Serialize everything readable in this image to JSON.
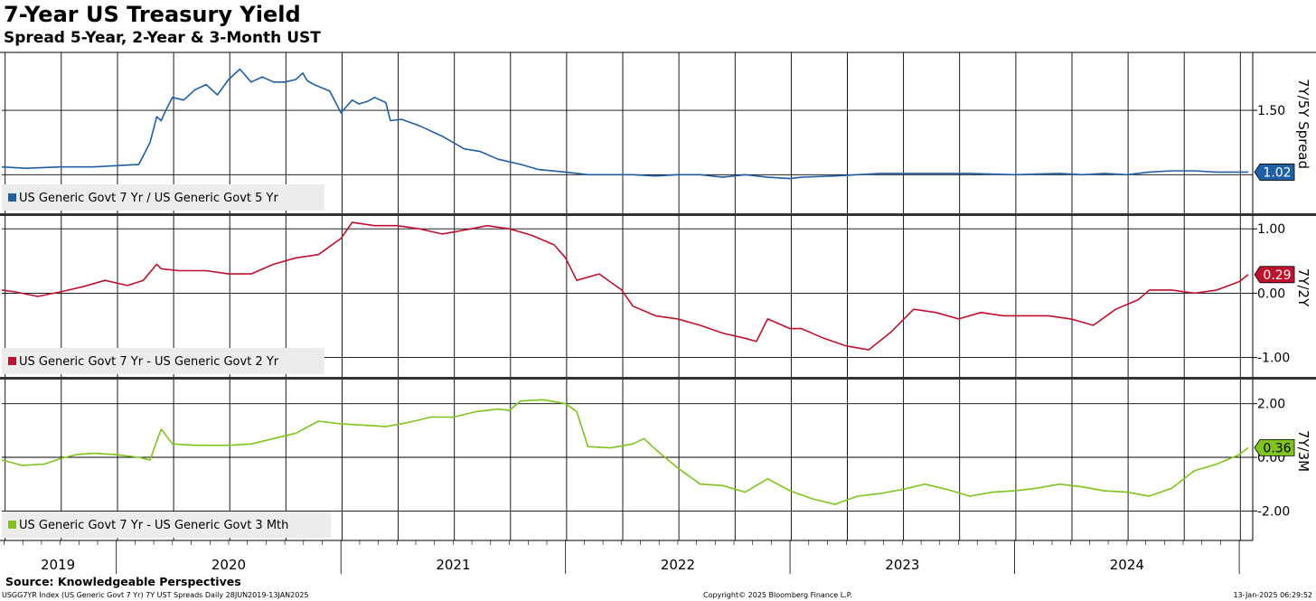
{
  "title": "7-Year US Treasury Yield",
  "subtitle": "Spread 5-Year, 2-Year & 3-Month UST",
  "source": "Source: Knowledgeable Perspectives",
  "footer": {
    "left": "USGG7YR Index (US Generic Govt 7 Yr) 7Y UST Spreads  Daily 28JUN2019-13JAN2025",
    "center": "Copyright© 2025 Bloomberg Finance L.P.",
    "right": "13-Jan-2025 06:29:52"
  },
  "colors": {
    "series1": "#1f5fa6",
    "series2": "#c0102e",
    "series3": "#7fc31c",
    "grid": "#000000",
    "panel_divider": "#333333"
  },
  "chart_data": [
    {
      "type": "line",
      "ylabel": "7Y/5Y Spread",
      "ylim": [
        0.7,
        1.95
      ],
      "yticks": [
        {
          "v": 1.5,
          "label": "1.50"
        }
      ],
      "gridlines": [
        1.0,
        1.5
      ],
      "grid": true,
      "legend_position": "bottom-left",
      "series": [
        {
          "name": "US Generic Govt 7 Yr / US Generic Govt 5 Yr",
          "last_value": 1.02,
          "last_label": "1.02",
          "x": [
            2019.49,
            2019.6,
            2019.75,
            2019.9,
            2020.0,
            2020.1,
            2020.15,
            2020.18,
            2020.2,
            2020.22,
            2020.25,
            2020.3,
            2020.35,
            2020.4,
            2020.45,
            2020.5,
            2020.55,
            2020.6,
            2020.65,
            2020.7,
            2020.75,
            2020.8,
            2020.83,
            2020.85,
            2020.88,
            2020.95,
            2021.0,
            2021.05,
            2021.08,
            2021.12,
            2021.15,
            2021.2,
            2021.22,
            2021.27,
            2021.35,
            2021.45,
            2021.5,
            2021.55,
            2021.62,
            2021.7,
            2021.8,
            2021.88,
            2022.0,
            2022.1,
            2022.2,
            2022.3,
            2022.4,
            2022.5,
            2022.6,
            2022.7,
            2022.8,
            2022.9,
            2023.0,
            2023.05,
            2023.2,
            2023.4,
            2023.6,
            2023.8,
            2024.0,
            2024.2,
            2024.3,
            2024.4,
            2024.5,
            2024.6,
            2024.7,
            2024.8,
            2024.9,
            2025.0,
            2025.04
          ],
          "values": [
            1.06,
            1.05,
            1.06,
            1.06,
            1.07,
            1.08,
            1.25,
            1.45,
            1.42,
            1.5,
            1.6,
            1.58,
            1.66,
            1.7,
            1.62,
            1.74,
            1.82,
            1.72,
            1.76,
            1.72,
            1.72,
            1.74,
            1.79,
            1.73,
            1.7,
            1.65,
            1.48,
            1.58,
            1.55,
            1.57,
            1.6,
            1.56,
            1.42,
            1.43,
            1.38,
            1.3,
            1.25,
            1.2,
            1.18,
            1.12,
            1.08,
            1.04,
            1.02,
            1.0,
            1.0,
            1.0,
            0.99,
            1.0,
            1.0,
            0.98,
            1.0,
            0.98,
            0.97,
            0.98,
            0.99,
            1.01,
            1.01,
            1.01,
            1.0,
            1.01,
            1.0,
            1.01,
            1.0,
            1.02,
            1.03,
            1.03,
            1.02,
            1.02,
            1.02
          ]
        }
      ]
    },
    {
      "type": "line",
      "ylabel": "7Y/2Y",
      "ylim": [
        -1.3,
        1.2
      ],
      "yticks": [
        {
          "v": 1.0,
          "label": "1.00"
        },
        {
          "v": 0.0,
          "label": "0.00"
        },
        {
          "v": -1.0,
          "label": "-1.00"
        }
      ],
      "gridlines": [
        1.0,
        0.0,
        -1.0
      ],
      "grid": true,
      "legend_position": "bottom-left",
      "series": [
        {
          "name": "US Generic Govt 7 Yr - US Generic Govt 2 Yr",
          "last_value": 0.29,
          "last_label": "0.29",
          "x": [
            2019.49,
            2019.55,
            2019.65,
            2019.75,
            2019.85,
            2019.95,
            2020.05,
            2020.12,
            2020.18,
            2020.2,
            2020.28,
            2020.4,
            2020.5,
            2020.6,
            2020.7,
            2020.8,
            2020.9,
            2021.0,
            2021.05,
            2021.15,
            2021.25,
            2021.35,
            2021.45,
            2021.5,
            2021.58,
            2021.65,
            2021.75,
            2021.85,
            2021.95,
            2022.0,
            2022.05,
            2022.15,
            2022.25,
            2022.3,
            2022.4,
            2022.5,
            2022.6,
            2022.7,
            2022.8,
            2022.85,
            2022.9,
            2023.0,
            2023.05,
            2023.15,
            2023.25,
            2023.35,
            2023.45,
            2023.55,
            2023.65,
            2023.75,
            2023.85,
            2023.95,
            2024.05,
            2024.15,
            2024.25,
            2024.35,
            2024.45,
            2024.55,
            2024.6,
            2024.7,
            2024.8,
            2024.9,
            2025.0,
            2025.04
          ],
          "values": [
            0.05,
            0.02,
            -0.05,
            0.02,
            0.1,
            0.2,
            0.12,
            0.2,
            0.45,
            0.38,
            0.35,
            0.35,
            0.3,
            0.3,
            0.45,
            0.55,
            0.6,
            0.85,
            1.1,
            1.05,
            1.05,
            1.0,
            0.92,
            0.95,
            1.0,
            1.05,
            1.0,
            0.9,
            0.75,
            0.55,
            0.2,
            0.3,
            0.05,
            -0.2,
            -0.35,
            -0.4,
            -0.5,
            -0.62,
            -0.7,
            -0.75,
            -0.4,
            -0.55,
            -0.55,
            -0.7,
            -0.82,
            -0.88,
            -0.6,
            -0.25,
            -0.3,
            -0.4,
            -0.3,
            -0.35,
            -0.35,
            -0.35,
            -0.4,
            -0.5,
            -0.25,
            -0.1,
            0.05,
            0.05,
            0.0,
            0.05,
            0.18,
            0.29
          ]
        }
      ]
    },
    {
      "type": "line",
      "ylabel": "7Y/3M",
      "ylim": [
        -3.1,
        2.9
      ],
      "yticks": [
        {
          "v": 2.0,
          "label": "2.00"
        },
        {
          "v": 0.0,
          "label": "0.00"
        },
        {
          "v": -2.0,
          "label": "-2.00"
        }
      ],
      "gridlines": [
        2.0,
        0.0,
        -2.0
      ],
      "grid": true,
      "legend_position": "bottom-left",
      "series": [
        {
          "name": "US Generic Govt 7 Yr - US Generic Govt 3 Mth",
          "last_value": 0.36,
          "last_label": "0.36",
          "x": [
            2019.49,
            2019.58,
            2019.68,
            2019.75,
            2019.82,
            2019.9,
            2020.0,
            2020.1,
            2020.15,
            2020.18,
            2020.2,
            2020.25,
            2020.35,
            2020.5,
            2020.6,
            2020.7,
            2020.8,
            2020.9,
            2021.0,
            2021.1,
            2021.2,
            2021.3,
            2021.4,
            2021.5,
            2021.6,
            2021.7,
            2021.75,
            2021.8,
            2021.9,
            2022.0,
            2022.05,
            2022.1,
            2022.2,
            2022.3,
            2022.35,
            2022.4,
            2022.5,
            2022.6,
            2022.7,
            2022.8,
            2022.9,
            2023.0,
            2023.1,
            2023.2,
            2023.3,
            2023.4,
            2023.5,
            2023.6,
            2023.7,
            2023.8,
            2023.9,
            2024.0,
            2024.1,
            2024.2,
            2024.3,
            2024.4,
            2024.5,
            2024.6,
            2024.7,
            2024.8,
            2024.9,
            2025.0,
            2025.04
          ],
          "values": [
            -0.1,
            -0.3,
            -0.25,
            -0.05,
            0.1,
            0.15,
            0.1,
            0.0,
            -0.1,
            0.6,
            1.05,
            0.5,
            0.45,
            0.45,
            0.5,
            0.7,
            0.9,
            1.35,
            1.25,
            1.2,
            1.15,
            1.3,
            1.5,
            1.5,
            1.7,
            1.8,
            1.75,
            2.1,
            2.15,
            2.0,
            1.7,
            0.4,
            0.35,
            0.5,
            0.7,
            0.3,
            -0.4,
            -1.0,
            -1.05,
            -1.3,
            -0.8,
            -1.25,
            -1.55,
            -1.75,
            -1.45,
            -1.35,
            -1.2,
            -1.0,
            -1.2,
            -1.45,
            -1.3,
            -1.25,
            -1.15,
            -1.0,
            -1.1,
            -1.25,
            -1.3,
            -1.45,
            -1.15,
            -0.5,
            -0.25,
            0.1,
            0.36
          ]
        }
      ]
    }
  ],
  "x_axis": {
    "year_labels": [
      {
        "label": "2019",
        "v": 2019.74
      },
      {
        "label": "2020",
        "v": 2020.5
      },
      {
        "label": "2021",
        "v": 2021.5
      },
      {
        "label": "2022",
        "v": 2022.5
      },
      {
        "label": "2023",
        "v": 2023.5
      },
      {
        "label": "2024",
        "v": 2024.5
      }
    ]
  }
}
